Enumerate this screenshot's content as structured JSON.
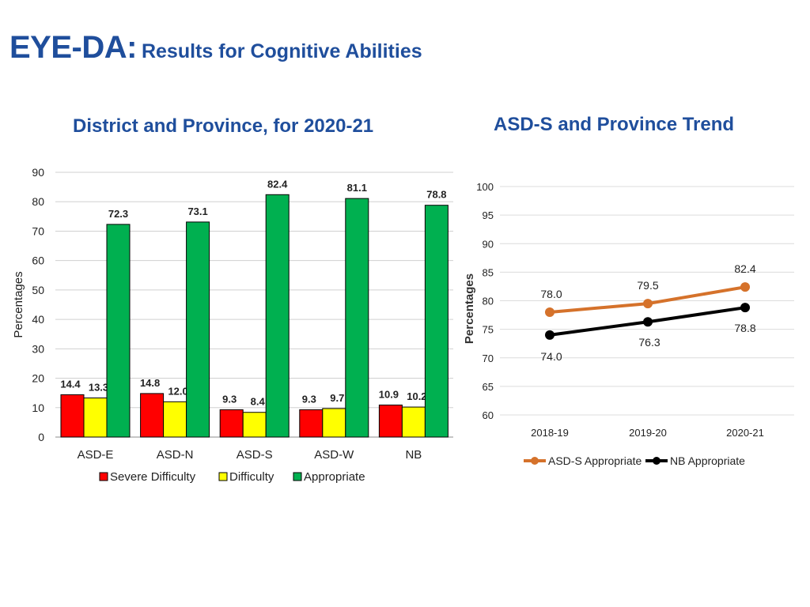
{
  "header": {
    "title_main": "EYE-DA:",
    "title_sub": "Results for Cognitive Abilities"
  },
  "chart_data": [
    {
      "type": "bar",
      "title": "District and Province, for 2020-21",
      "ylabel": "Percentages",
      "xlabel": "",
      "ylim": [
        0,
        90
      ],
      "yticks": [
        0,
        10,
        20,
        30,
        40,
        50,
        60,
        70,
        80,
        90
      ],
      "categories": [
        "ASD-E",
        "ASD-N",
        "ASD-S",
        "ASD-W",
        "NB"
      ],
      "series": [
        {
          "name": "Severe Difficulty",
          "color": "#ff0000",
          "values": [
            14.4,
            14.8,
            9.3,
            9.3,
            10.9
          ]
        },
        {
          "name": "Difficulty",
          "color": "#ffff00",
          "values": [
            13.3,
            12.0,
            8.4,
            9.7,
            10.2
          ]
        },
        {
          "name": "Appropriate",
          "color": "#00b050",
          "values": [
            72.3,
            73.1,
            82.4,
            81.1,
            78.8
          ]
        }
      ],
      "data_labels": [
        [
          "14.4",
          "14.8",
          "9.3",
          "9.3",
          "10.9"
        ],
        [
          "13.3",
          "12.0",
          "8.4",
          "9.7",
          "10.2"
        ],
        [
          "72.3",
          "73.1",
          "82.4",
          "81.1",
          "78.8"
        ]
      ],
      "grid": true,
      "legend": "bottom"
    },
    {
      "type": "line",
      "title": "ASD-S and Province Trend",
      "ylabel": "Percentages",
      "xlabel": "",
      "ylim": [
        60,
        100
      ],
      "yticks": [
        60,
        65,
        70,
        75,
        80,
        85,
        90,
        95,
        100
      ],
      "categories": [
        "2018-19",
        "2019-20",
        "2020-21"
      ],
      "series": [
        {
          "name": "ASD-S Appropriate",
          "color": "#d5722b",
          "values": [
            78.0,
            79.5,
            82.4
          ],
          "labels": [
            "78.0",
            "79.5",
            "82.4"
          ]
        },
        {
          "name": "NB Appropriate",
          "color": "#000000",
          "values": [
            74.0,
            76.3,
            78.8
          ],
          "labels": [
            "74.0",
            "76.3",
            "78.8"
          ]
        }
      ],
      "grid": true,
      "legend": "bottom"
    }
  ]
}
